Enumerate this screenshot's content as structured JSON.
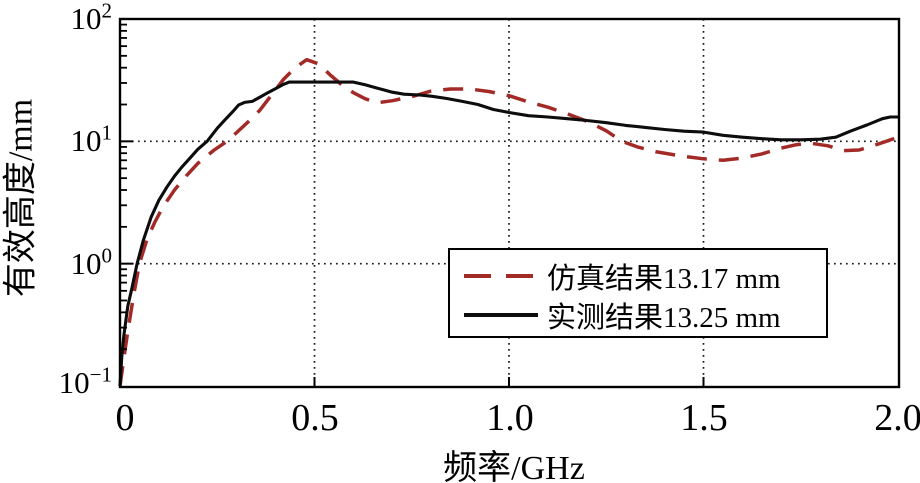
{
  "figure": {
    "background": "#ffffff",
    "frame_color": "#000000",
    "grid_color": "#1a1a1a"
  },
  "chart_data": {
    "type": "line",
    "title": "",
    "xlabel": "频率/GHz",
    "ylabel": "有效高度/mm",
    "x_range": [
      0,
      2
    ],
    "y_scale": "log",
    "y_range": [
      0.1,
      100
    ],
    "grid": "dotted",
    "legend_position": "lower-right-inside",
    "x_ticks": [
      {
        "v": 0,
        "label": "0"
      },
      {
        "v": 0.5,
        "label": "0.5"
      },
      {
        "v": 1.0,
        "label": "1.0"
      },
      {
        "v": 1.5,
        "label": "1.5"
      },
      {
        "v": 2.0,
        "label": "2.0"
      }
    ],
    "y_ticks": [
      {
        "v": 100,
        "base": "10",
        "exp": "2"
      },
      {
        "v": 10,
        "base": "10",
        "exp": "1"
      },
      {
        "v": 1,
        "base": "10",
        "exp": "0"
      },
      {
        "v": 0.1,
        "base": "10",
        "exp": "−1"
      }
    ],
    "x_gridlines": [
      0.5,
      1.0,
      1.5
    ],
    "y_gridlines": [
      1,
      10
    ],
    "series": [
      {
        "name": "仿真结果13.17 mm",
        "style": "dashed",
        "color": "#a32b27",
        "points": [
          [
            0.0,
            0.1
          ],
          [
            0.01,
            0.17
          ],
          [
            0.02,
            0.28
          ],
          [
            0.035,
            0.55
          ],
          [
            0.05,
            1.0
          ],
          [
            0.07,
            1.6
          ],
          [
            0.09,
            2.2
          ],
          [
            0.11,
            2.9
          ],
          [
            0.14,
            4.0
          ],
          [
            0.17,
            5.2
          ],
          [
            0.2,
            6.6
          ],
          [
            0.24,
            8.4
          ],
          [
            0.275,
            10.0
          ],
          [
            0.3,
            11.8
          ],
          [
            0.33,
            14.5
          ],
          [
            0.36,
            18.0
          ],
          [
            0.39,
            24.0
          ],
          [
            0.42,
            32.0
          ],
          [
            0.45,
            40.0
          ],
          [
            0.48,
            46.5
          ],
          [
            0.51,
            43.0
          ],
          [
            0.54,
            35.0
          ],
          [
            0.57,
            29.0
          ],
          [
            0.6,
            25.0
          ],
          [
            0.63,
            22.3
          ],
          [
            0.66,
            20.6
          ],
          [
            0.7,
            21.5
          ],
          [
            0.75,
            23.2
          ],
          [
            0.8,
            25.8
          ],
          [
            0.85,
            26.8
          ],
          [
            0.9,
            26.8
          ],
          [
            0.95,
            25.5
          ],
          [
            1.0,
            23.6
          ],
          [
            1.05,
            21.0
          ],
          [
            1.1,
            19.0
          ],
          [
            1.15,
            16.8
          ],
          [
            1.2,
            14.6
          ],
          [
            1.25,
            12.2
          ],
          [
            1.29,
            10.0
          ],
          [
            1.33,
            9.0
          ],
          [
            1.38,
            8.2
          ],
          [
            1.44,
            7.6
          ],
          [
            1.5,
            7.2
          ],
          [
            1.55,
            7.0
          ],
          [
            1.6,
            7.3
          ],
          [
            1.65,
            7.9
          ],
          [
            1.7,
            8.8
          ],
          [
            1.74,
            9.4
          ],
          [
            1.78,
            9.6
          ],
          [
            1.82,
            9.2
          ],
          [
            1.86,
            8.4
          ],
          [
            1.9,
            8.5
          ],
          [
            1.94,
            9.3
          ],
          [
            1.97,
            10.0
          ],
          [
            2.0,
            10.8
          ]
        ]
      },
      {
        "name": "实测结果13.25 mm",
        "style": "solid",
        "color": "#0d0d0d",
        "points": [
          [
            0.0,
            0.1
          ],
          [
            0.005,
            0.18
          ],
          [
            0.01,
            0.26
          ],
          [
            0.02,
            0.45
          ],
          [
            0.03,
            0.62
          ],
          [
            0.044,
            1.0
          ],
          [
            0.06,
            1.55
          ],
          [
            0.08,
            2.4
          ],
          [
            0.1,
            3.3
          ],
          [
            0.12,
            4.2
          ],
          [
            0.14,
            5.2
          ],
          [
            0.16,
            6.2
          ],
          [
            0.18,
            7.3
          ],
          [
            0.2,
            8.6
          ],
          [
            0.224,
            10.0
          ],
          [
            0.25,
            12.8
          ],
          [
            0.27,
            15.0
          ],
          [
            0.29,
            17.5
          ],
          [
            0.305,
            19.8
          ],
          [
            0.32,
            20.8
          ],
          [
            0.34,
            21.2
          ],
          [
            0.36,
            23.0
          ],
          [
            0.38,
            25.0
          ],
          [
            0.4,
            27.0
          ],
          [
            0.42,
            29.2
          ],
          [
            0.435,
            30.5
          ],
          [
            0.52,
            30.5
          ],
          [
            0.6,
            30.5
          ],
          [
            0.63,
            29.0
          ],
          [
            0.66,
            27.3
          ],
          [
            0.7,
            25.2
          ],
          [
            0.73,
            24.3
          ],
          [
            0.77,
            23.9
          ],
          [
            0.8,
            23.4
          ],
          [
            0.84,
            22.4
          ],
          [
            0.88,
            21.2
          ],
          [
            0.92,
            20.0
          ],
          [
            0.96,
            18.2
          ],
          [
            1.0,
            17.2
          ],
          [
            1.05,
            16.2
          ],
          [
            1.1,
            15.8
          ],
          [
            1.15,
            15.3
          ],
          [
            1.2,
            14.8
          ],
          [
            1.25,
            14.2
          ],
          [
            1.3,
            13.5
          ],
          [
            1.35,
            13.0
          ],
          [
            1.4,
            12.5
          ],
          [
            1.45,
            12.1
          ],
          [
            1.5,
            11.9
          ],
          [
            1.55,
            11.2
          ],
          [
            1.6,
            10.8
          ],
          [
            1.65,
            10.5
          ],
          [
            1.7,
            10.3
          ],
          [
            1.75,
            10.3
          ],
          [
            1.8,
            10.4
          ],
          [
            1.84,
            10.8
          ],
          [
            1.88,
            12.2
          ],
          [
            1.92,
            13.6
          ],
          [
            1.96,
            15.3
          ],
          [
            1.98,
            15.8
          ],
          [
            2.0,
            15.8
          ]
        ]
      }
    ]
  }
}
